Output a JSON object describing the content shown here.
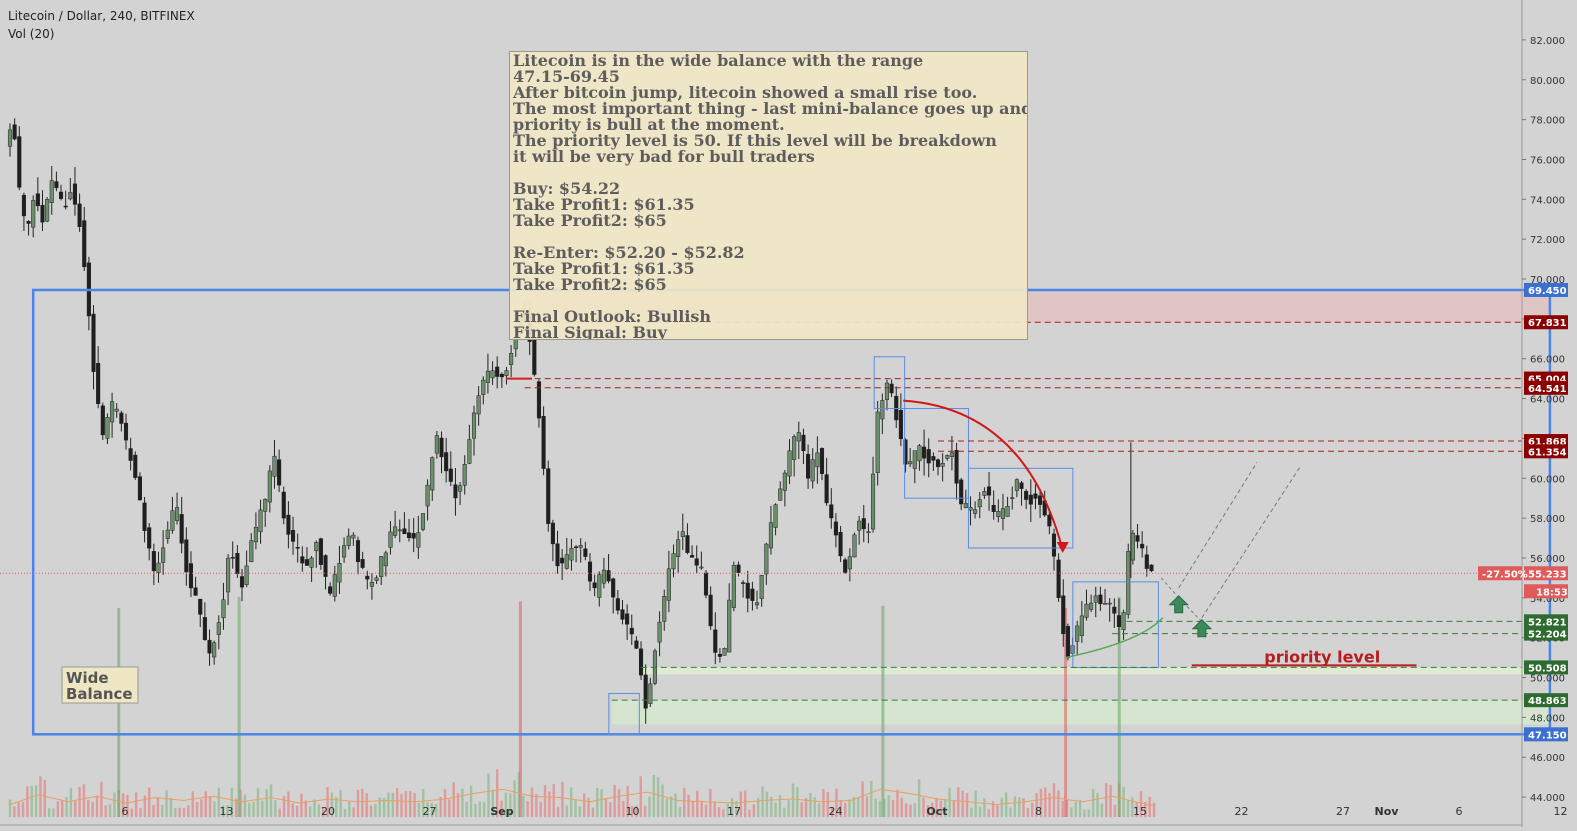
{
  "header": {
    "title": "Litecoin / Dollar, 240, BITFINEX",
    "indicator": "Vol (20)"
  },
  "note": {
    "lines": [
      "Litecoin is in the wide balance with the range",
      "47.15-69.45",
      "After bitcoin jump, litecoin showed a small rise too.",
      "The most important thing - last mini-balance goes up and",
      "priority is bull at the moment.",
      "The priority level is 50. If this level will be breakdown",
      "it will be very bad for bull traders",
      "",
      "Buy: $54.22",
      "Take Profit1: $61.35",
      "Take Profit2: $65",
      "",
      "Re-Enter: $52.20 - $52.82",
      "Take Profit1: $61.35",
      "Take Profit2: $65",
      "",
      "Final Outlook: Bullish",
      "Final Signal: Buy"
    ]
  },
  "colors": {
    "background": "#d3d3d3",
    "up_candle": "#6b8e6b",
    "down_candle": "#1f1f1f",
    "resistance": "#8b0000",
    "support": "#2e6b2e",
    "balance_box": "#4a86e8",
    "current_price": "#e06060"
  },
  "chart_data": {
    "type": "candlestick",
    "title": "Litecoin / Dollar, 240, BITFINEX",
    "ylim": [
      43,
      83
    ],
    "y_ticks": [
      44,
      46,
      48,
      50,
      52,
      54,
      56,
      58,
      60,
      62,
      64,
      66,
      68,
      70,
      72,
      74,
      76,
      78,
      80,
      82
    ],
    "y_tick_labels": [
      "44.000",
      "46.000",
      "48.000",
      "50.000",
      "52.000",
      "54.000",
      "56.000",
      "58.000",
      "60.000",
      "62.000",
      "64.000",
      "66.000",
      "68.000",
      "70.000",
      "72.000",
      "74.000",
      "76.000",
      "78.000",
      "80.000",
      "82.000"
    ],
    "x_labels": [
      {
        "label": "6",
        "day": 6
      },
      {
        "label": "13",
        "day": 13
      },
      {
        "label": "20",
        "day": 20
      },
      {
        "label": "27",
        "day": 27
      },
      {
        "label": "Sep",
        "day": 32
      },
      {
        "label": "10",
        "day": 41
      },
      {
        "label": "17",
        "day": 48
      },
      {
        "label": "24",
        "day": 55
      },
      {
        "label": "Oct",
        "day": 62
      },
      {
        "label": "8",
        "day": 69
      },
      {
        "label": "15",
        "day": 76
      },
      {
        "label": "22",
        "day": 83
      },
      {
        "label": "27",
        "day": 90
      },
      {
        "label": "Nov",
        "day": 93
      },
      {
        "label": "6",
        "day": 98
      },
      {
        "label": "12",
        "day": 105
      }
    ],
    "price_path": [
      [
        0,
        76.5
      ],
      [
        0.5,
        78.2
      ],
      [
        1,
        74
      ],
      [
        1.5,
        72.5
      ],
      [
        2,
        74.5
      ],
      [
        2.6,
        73
      ],
      [
        3.3,
        75
      ],
      [
        4,
        73.5
      ],
      [
        4.6,
        74.8
      ],
      [
        5.2,
        72.5
      ],
      [
        6,
        66
      ],
      [
        6.7,
        62
      ],
      [
        7.5,
        64
      ],
      [
        8.2,
        62
      ],
      [
        9,
        60
      ],
      [
        9.7,
        57
      ],
      [
        10.4,
        55
      ],
      [
        11.1,
        57.5
      ],
      [
        11.8,
        58.5
      ],
      [
        12.5,
        55.5
      ],
      [
        13.3,
        53.5
      ],
      [
        14,
        51
      ],
      [
        14.8,
        53
      ],
      [
        15.5,
        56.5
      ],
      [
        16.3,
        54.5
      ],
      [
        17,
        57
      ],
      [
        17.8,
        58.5
      ],
      [
        18.5,
        61.5
      ],
      [
        19.3,
        57.5
      ],
      [
        20,
        56.5
      ],
      [
        20.8,
        55.5
      ],
      [
        21.5,
        56.8
      ],
      [
        22.3,
        54
      ],
      [
        23,
        55.8
      ],
      [
        23.8,
        57.5
      ],
      [
        24.5,
        55.5
      ],
      [
        25.2,
        54.5
      ],
      [
        26,
        56
      ],
      [
        26.7,
        57.5
      ],
      [
        27.5,
        57.2
      ],
      [
        28.2,
        56.8
      ],
      [
        29,
        59
      ],
      [
        29.7,
        62.5
      ],
      [
        30.5,
        60
      ],
      [
        31.2,
        59
      ],
      [
        32,
        62
      ],
      [
        32.8,
        64.5
      ],
      [
        33.5,
        65.5
      ],
      [
        34.2,
        65
      ],
      [
        35,
        66.5
      ],
      [
        35.6,
        68.5
      ],
      [
        36.2,
        67
      ],
      [
        36.8,
        63
      ],
      [
        37.5,
        57.5
      ],
      [
        38.2,
        55.5
      ],
      [
        39,
        56.5
      ],
      [
        39.8,
        56.5
      ],
      [
        40.5,
        54
      ],
      [
        41.2,
        55.5
      ],
      [
        42,
        54
      ],
      [
        42.8,
        52.5
      ],
      [
        43.5,
        51.5
      ],
      [
        44.2,
        48.5
      ],
      [
        45,
        52.5
      ],
      [
        45.8,
        55.5
      ],
      [
        46.5,
        57.5
      ],
      [
        47.2,
        56
      ],
      [
        48,
        55.5
      ],
      [
        48.8,
        51.5
      ],
      [
        49.5,
        50.8
      ],
      [
        50.2,
        55.5
      ],
      [
        51,
        54.5
      ],
      [
        51.8,
        53.5
      ],
      [
        52.5,
        56.5
      ],
      [
        53.2,
        59
      ],
      [
        54,
        61
      ],
      [
        54.7,
        62.5
      ],
      [
        55.3,
        60
      ],
      [
        56,
        61.5
      ],
      [
        56.6,
        59
      ],
      [
        57.3,
        57
      ],
      [
        58,
        55
      ],
      [
        58.8,
        58
      ],
      [
        59.5,
        57
      ],
      [
        60.2,
        63.5
      ],
      [
        60.8,
        65
      ],
      [
        61.5,
        63
      ],
      [
        62.2,
        60.5
      ],
      [
        63,
        61.5
      ],
      [
        63.7,
        61
      ],
      [
        64.4,
        60.5
      ],
      [
        65.2,
        61.5
      ],
      [
        66,
        58.5
      ],
      [
        66.8,
        58.5
      ],
      [
        67.5,
        59.5
      ],
      [
        68.3,
        58
      ],
      [
        69,
        58.5
      ],
      [
        69.8,
        60
      ],
      [
        70.5,
        59
      ],
      [
        71.2,
        58.8
      ],
      [
        71.9,
        58
      ],
      [
        72.6,
        54.5
      ],
      [
        73.2,
        51
      ],
      [
        74,
        52.5
      ],
      [
        74.8,
        53.8
      ],
      [
        75.6,
        54
      ],
      [
        76.4,
        53.2
      ],
      [
        77,
        52
      ],
      [
        77.6,
        57.5
      ],
      [
        78.3,
        56.5
      ],
      [
        79,
        55.233
      ]
    ],
    "volume_path": [
      [
        0,
        0.18
      ],
      [
        2,
        0.32
      ],
      [
        4,
        0.22
      ],
      [
        6,
        0.3
      ],
      [
        8,
        0.2
      ],
      [
        10,
        0.28
      ],
      [
        12,
        0.24
      ],
      [
        14,
        0.3
      ],
      [
        16,
        0.22
      ],
      [
        18,
        0.28
      ],
      [
        20,
        0.2
      ],
      [
        22,
        0.26
      ],
      [
        24,
        0.22
      ],
      [
        26,
        0.24
      ],
      [
        28,
        0.22
      ],
      [
        30,
        0.26
      ],
      [
        32,
        0.34
      ],
      [
        34,
        0.4
      ],
      [
        36,
        0.3
      ],
      [
        38,
        0.28
      ],
      [
        40,
        0.22
      ],
      [
        42,
        0.3
      ],
      [
        44,
        0.36
      ],
      [
        46,
        0.24
      ],
      [
        48,
        0.22
      ],
      [
        50,
        0.2
      ],
      [
        52,
        0.24
      ],
      [
        54,
        0.26
      ],
      [
        56,
        0.22
      ],
      [
        58,
        0.24
      ],
      [
        60,
        0.4
      ],
      [
        62,
        0.34
      ],
      [
        64,
        0.26
      ],
      [
        66,
        0.22
      ],
      [
        68,
        0.18
      ],
      [
        70,
        0.22
      ],
      [
        72,
        0.28
      ],
      [
        74,
        0.22
      ],
      [
        76,
        0.3
      ],
      [
        78,
        0.2
      ],
      [
        79,
        0.16
      ]
    ],
    "volume_spikes": [
      {
        "day": 7.5,
        "value": 0.95,
        "dir": "up"
      },
      {
        "day": 15.8,
        "value": 1.0,
        "dir": "up"
      },
      {
        "day": 35.2,
        "value": 0.98,
        "dir": "down"
      },
      {
        "day": 60.2,
        "value": 0.96,
        "dir": "up"
      },
      {
        "day": 72.8,
        "value": 0.95,
        "dir": "down"
      },
      {
        "day": 76.5,
        "value": 1.0,
        "dir": "up"
      }
    ],
    "wide_balance": {
      "from_day": 1.6,
      "to_day": 106.2,
      "low": 47.15,
      "high": 69.45,
      "label": "Wide Balance"
    },
    "levels": [
      {
        "value": 69.45,
        "label": "69.450",
        "kind": "resistance",
        "from_day": 106.2
      },
      {
        "value": 67.831,
        "label": "67.831",
        "kind": "resistance",
        "from_day": 35.5
      },
      {
        "value": 65.004,
        "label": "65.004",
        "kind": "resistance",
        "from_day": 35.5
      },
      {
        "value": 64.541,
        "label": "64.541",
        "kind": "resistance",
        "from_day": 35.5
      },
      {
        "value": 61.868,
        "label": "61.868",
        "kind": "resistance",
        "from_day": 64
      },
      {
        "value": 61.354,
        "label": "61.354",
        "kind": "resistance",
        "from_day": 64
      },
      {
        "value": 52.821,
        "label": "52.821",
        "kind": "support",
        "from_day": 77
      },
      {
        "value": 52.204,
        "label": "52.204",
        "kind": "support",
        "from_day": 76
      },
      {
        "value": 50.508,
        "label": "50.508",
        "kind": "support",
        "from_day": 43.5
      },
      {
        "value": 48.863,
        "label": "48.863",
        "kind": "support",
        "from_day": 41.5
      },
      {
        "value": 47.15,
        "label": "47.150",
        "kind": "balance",
        "from_day": 106.2
      }
    ],
    "current_price": {
      "value": 55.233,
      "label": "55.233",
      "change": "-27.50%",
      "countdown": "18:53"
    },
    "mini_balances": [
      {
        "from_day": 41.3,
        "to_day": 43.4,
        "low": 47.15,
        "high": 49.2
      },
      {
        "from_day": 59.6,
        "to_day": 61.7,
        "low": 63.5,
        "high": 66.1
      },
      {
        "from_day": 61.7,
        "to_day": 66.1,
        "low": 59.0,
        "high": 63.5
      },
      {
        "from_day": 66.1,
        "to_day": 73.3,
        "low": 56.5,
        "high": 60.5
      },
      {
        "from_day": 73.3,
        "to_day": 79.2,
        "low": 50.5,
        "high": 54.8
      }
    ],
    "priority_level": {
      "value": 50.508,
      "label": "priority level"
    },
    "buy_arrows": [
      {
        "day": 80.6,
        "price": 53.6
      },
      {
        "day": 82.2,
        "price": 52.4
      }
    ],
    "target_paths": [
      {
        "from": [
          80.6,
          54.5
        ],
        "to": [
          86,
          60.8
        ]
      },
      {
        "from": [
          82.2,
          53.0
        ],
        "to": [
          89,
          60.6
        ]
      }
    ],
    "grid": false
  }
}
